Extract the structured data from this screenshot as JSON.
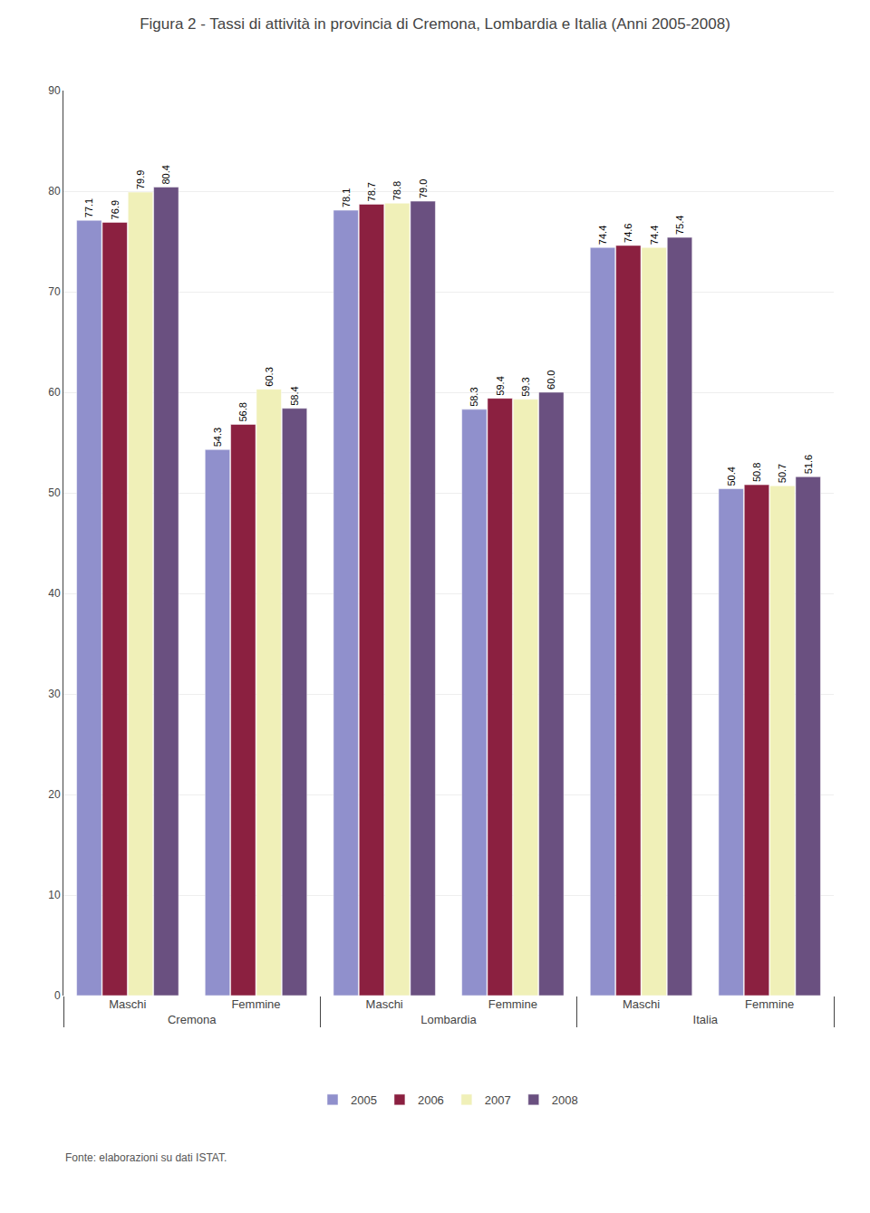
{
  "chart_data": {
    "type": "bar",
    "title": "Figura 2 - Tassi di attività in provincia di Cremona, Lombardia e Italia (Anni 2005-2008)",
    "categories": [
      "Maschi",
      "Femmine",
      "Maschi",
      "Femmine",
      "Maschi",
      "Femmine"
    ],
    "category_groups": [
      "Cremona",
      "Cremona",
      "Lombardia",
      "Lombardia",
      "Italia",
      "Italia"
    ],
    "series": [
      {
        "name": "2005",
        "color": "#9090cc",
        "values": [
          77.1,
          54.3,
          78.1,
          58.3,
          74.4,
          50.4
        ],
        "value_labels": [
          "77.1",
          "54.3",
          "78.1",
          "58.3",
          "74.4",
          "50.4"
        ]
      },
      {
        "name": "2006",
        "color": "#8b2040",
        "values": [
          76.9,
          56.8,
          78.7,
          59.4,
          74.6,
          50.8
        ],
        "value_labels": [
          "76.9",
          "56.8",
          "78.7",
          "59.4",
          "74.6",
          "50.8"
        ]
      },
      {
        "name": "2007",
        "color": "#f0f0b8",
        "values": [
          79.9,
          60.3,
          78.8,
          59.3,
          74.4,
          50.7
        ],
        "value_labels": [
          "79.9",
          "60.3",
          "78.8",
          "59.3",
          "74.4",
          "50.7"
        ]
      },
      {
        "name": "2008",
        "color": "#6a5080",
        "values": [
          80.4,
          58.4,
          79.0,
          60.0,
          75.4,
          51.6
        ],
        "value_labels": [
          "80.4",
          "58.4",
          "79.0",
          "60.0",
          "75.4",
          "51.6"
        ]
      }
    ],
    "ylim": [
      0,
      90
    ],
    "yticks": [
      0,
      10,
      20,
      30,
      40,
      50,
      60,
      70,
      80,
      90
    ],
    "grid": true,
    "legend": "bottom",
    "data_labels": true,
    "annotations": [
      {
        "text": "Fonte: elaborazioni su dati ISTAT."
      }
    ]
  }
}
